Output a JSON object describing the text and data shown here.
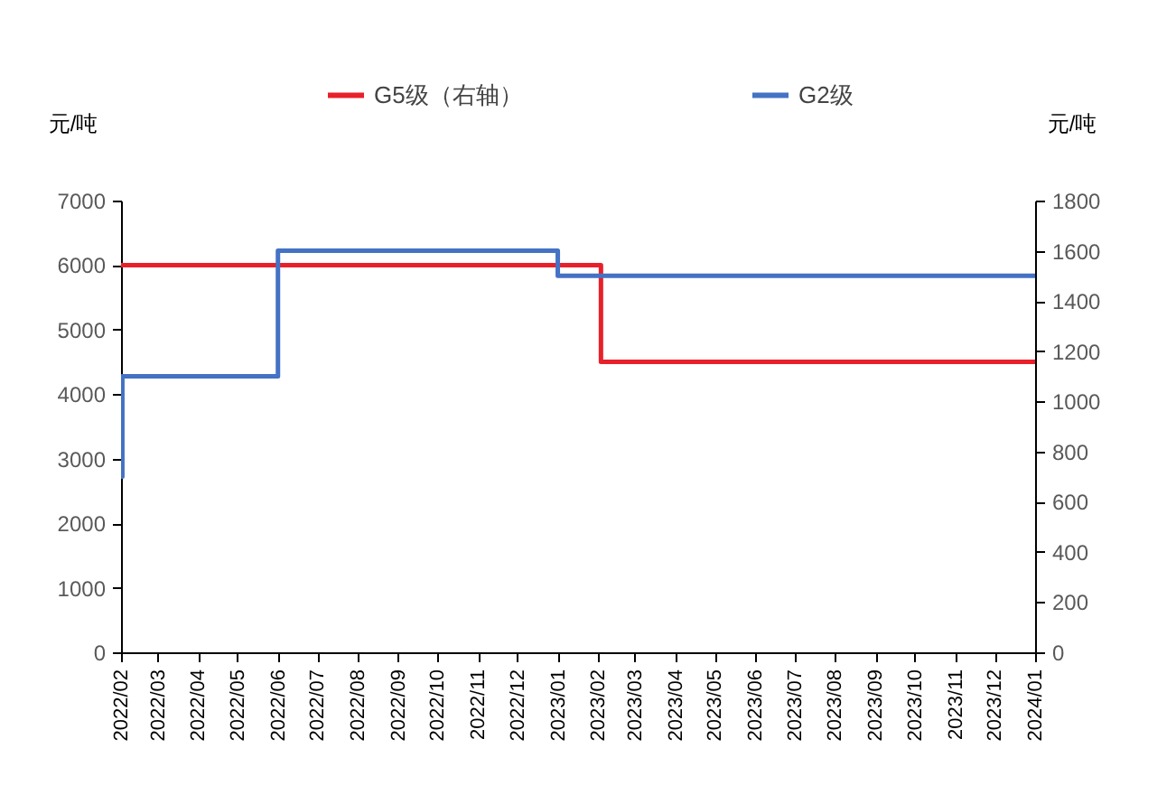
{
  "chart_data": {
    "type": "step",
    "ylabel": "元/吨",
    "y2label": "元/吨",
    "legend": "top",
    "grid": false,
    "line_style": "solid",
    "marker": "none",
    "xlim": [
      "2022-02-01",
      "2024-01-01"
    ],
    "xticks": [
      {
        "value": "2022-02",
        "label": "2022/02"
      },
      {
        "value": "2022-03",
        "label": "2022/03"
      },
      {
        "value": "2022-04",
        "label": "2022/04"
      },
      {
        "value": "2022-05",
        "label": "2022/05"
      },
      {
        "value": "2022-06",
        "label": "2022/06"
      },
      {
        "value": "2022-07",
        "label": "2022/07"
      },
      {
        "value": "2022-08",
        "label": "2022/08"
      },
      {
        "value": "2022-09",
        "label": "2022/09"
      },
      {
        "value": "2022-10",
        "label": "2022/10"
      },
      {
        "value": "2022-11",
        "label": "2022/11"
      },
      {
        "value": "2022-12",
        "label": "2022/12"
      },
      {
        "value": "2023-01",
        "label": "2023/01"
      },
      {
        "value": "2023-02",
        "label": "2023/02"
      },
      {
        "value": "2023-03",
        "label": "2023/03"
      },
      {
        "value": "2023-04",
        "label": "2023/04"
      },
      {
        "value": "2023-05",
        "label": "2023/05"
      },
      {
        "value": "2023-06",
        "label": "2023/06"
      },
      {
        "value": "2023-07",
        "label": "2023/07"
      },
      {
        "value": "2023-08",
        "label": "2023/08"
      },
      {
        "value": "2023-09",
        "label": "2023/09"
      },
      {
        "value": "2023-10",
        "label": "2023/10"
      },
      {
        "value": "2023-11",
        "label": "2023/11"
      },
      {
        "value": "2023-12",
        "label": "2023/12"
      },
      {
        "value": "2024-01",
        "label": "2024/01"
      }
    ],
    "ylim": [
      0,
      7000
    ],
    "yticks": [
      0,
      1000,
      2000,
      3000,
      4000,
      5000,
      6000,
      7000
    ],
    "y2lim": [
      0,
      1800
    ],
    "y2ticks": [
      0,
      200,
      400,
      600,
      800,
      1000,
      1200,
      1400,
      1600,
      1800
    ],
    "series": [
      {
        "name": "G5级（右轴）",
        "color": "#e8202a",
        "x": [
          "2022-02-01",
          "2023-02-03",
          "2024-01-01"
        ],
        "values": [
          6000,
          4500,
          4500
        ]
      },
      {
        "name": "G2级",
        "color": "#4472c4",
        "axis": "y2",
        "x": [
          "2022-02-01",
          "2022-02-02",
          "2022-06-01",
          "2023-01-01",
          "2024-01-01"
        ],
        "values": [
          700,
          1100,
          1600,
          1500,
          1500
        ]
      }
    ]
  }
}
